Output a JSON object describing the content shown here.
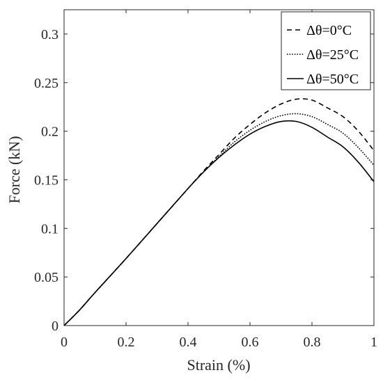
{
  "chart_data": {
    "type": "line",
    "title": "",
    "xlabel": "Strain (%)",
    "ylabel": "Force (kN)",
    "xlim": [
      0,
      1
    ],
    "ylim": [
      0,
      0.325
    ],
    "xticks": [
      0,
      0.2,
      0.4,
      0.6,
      0.8,
      1
    ],
    "xtick_labels": [
      "0",
      "0.2",
      "0.4",
      "0.6",
      "0.8",
      "1"
    ],
    "yticks": [
      0,
      0.05,
      0.1,
      0.15,
      0.2,
      0.25,
      0.3
    ],
    "ytick_labels": [
      "0",
      "0.05",
      "0.1",
      "0.15",
      "0.2",
      "0.25",
      "0.3"
    ],
    "grid": false,
    "legend_position": "top-right",
    "series": [
      {
        "name": "Δθ=0°C",
        "line_style": "dashed",
        "x": [
          0,
          0.05,
          0.1,
          0.2,
          0.3,
          0.4,
          0.45,
          0.5,
          0.55,
          0.6,
          0.65,
          0.7,
          0.75,
          0.8,
          0.85,
          0.9,
          0.95,
          1.0
        ],
        "y": [
          0,
          0.016,
          0.034,
          0.069,
          0.105,
          0.141,
          0.159,
          0.176,
          0.193,
          0.207,
          0.219,
          0.228,
          0.233,
          0.232,
          0.224,
          0.215,
          0.2,
          0.18
        ]
      },
      {
        "name": "Δθ=25°C",
        "line_style": "dotted",
        "x": [
          0,
          0.05,
          0.1,
          0.2,
          0.3,
          0.4,
          0.45,
          0.5,
          0.55,
          0.6,
          0.65,
          0.7,
          0.75,
          0.8,
          0.85,
          0.9,
          0.95,
          1.0
        ],
        "y": [
          0,
          0.016,
          0.034,
          0.069,
          0.105,
          0.141,
          0.158,
          0.174,
          0.189,
          0.201,
          0.21,
          0.216,
          0.218,
          0.215,
          0.207,
          0.198,
          0.183,
          0.165
        ]
      },
      {
        "name": "Δθ=50°C",
        "line_style": "solid",
        "x": [
          0,
          0.05,
          0.1,
          0.2,
          0.3,
          0.4,
          0.45,
          0.5,
          0.55,
          0.6,
          0.65,
          0.7,
          0.75,
          0.8,
          0.85,
          0.9,
          0.95,
          1.0
        ],
        "y": [
          0,
          0.016,
          0.034,
          0.069,
          0.105,
          0.141,
          0.158,
          0.173,
          0.186,
          0.197,
          0.205,
          0.21,
          0.21,
          0.204,
          0.194,
          0.184,
          0.168,
          0.148
        ]
      }
    ]
  }
}
